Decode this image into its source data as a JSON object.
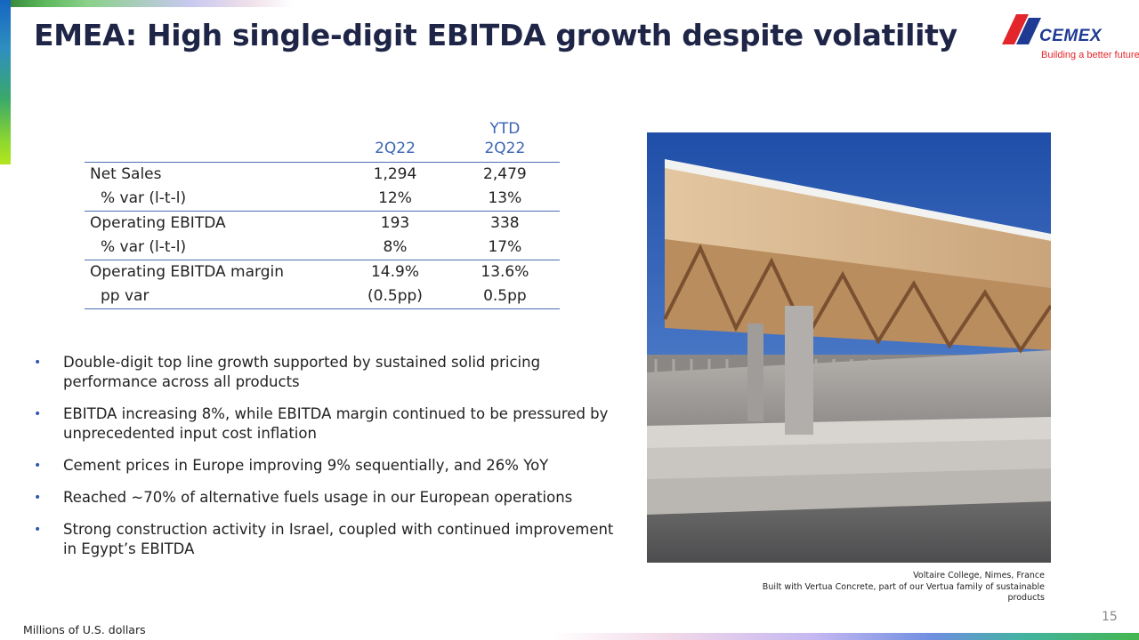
{
  "header": {
    "title": "EMEA: High single-digit EBITDA growth despite volatility"
  },
  "logo": {
    "wordmark": "CEMEX",
    "tagline": "Building a better future"
  },
  "table": {
    "columns": [
      {
        "line1": "",
        "line2": "2Q22"
      },
      {
        "line1": "YTD",
        "line2": "2Q22"
      }
    ],
    "rows": [
      {
        "label": "Net Sales",
        "values": [
          "1,294",
          "2,479"
        ]
      },
      {
        "label": "% var (l-t-l)",
        "values": [
          "12%",
          "13%"
        ]
      },
      {
        "label": "Operating EBITDA",
        "values": [
          "193",
          "338"
        ]
      },
      {
        "label": "% var (l-t-l)",
        "values": [
          "8%",
          "17%"
        ]
      },
      {
        "label": "Operating EBITDA margin",
        "values": [
          "14.9%",
          "13.6%"
        ]
      },
      {
        "label": "pp var",
        "values": [
          "(0.5pp)",
          "0.5pp"
        ]
      }
    ]
  },
  "bullets": [
    "Double-digit top line growth supported by sustained solid pricing performance across all products",
    "EBITDA increasing 8%, while EBITDA margin continued to be pressured by unprecedented input cost inflation",
    "Cement prices in Europe improving 9% sequentially, and 26% YoY",
    "Reached ~70% of alternative fuels usage in our European operations",
    "Strong construction activity in Israel, coupled with continued improvement in Egypt’s EBITDA"
  ],
  "bullet_marker": "•",
  "caption": {
    "line1": "Voltaire College, Nimes, France",
    "line2": "Built with Vertua Concrete, part of our Vertua family of sustainable",
    "line3": "products"
  },
  "footnote": "Millions of U.S. dollars",
  "page_number": "15",
  "colors": {
    "title": "#1f2547",
    "table_header": "#3a64b5",
    "rule": "#4a6fb0",
    "bullet": "#2f55b5",
    "logo_blue": "#1f3a93",
    "logo_red": "#e2262b"
  }
}
